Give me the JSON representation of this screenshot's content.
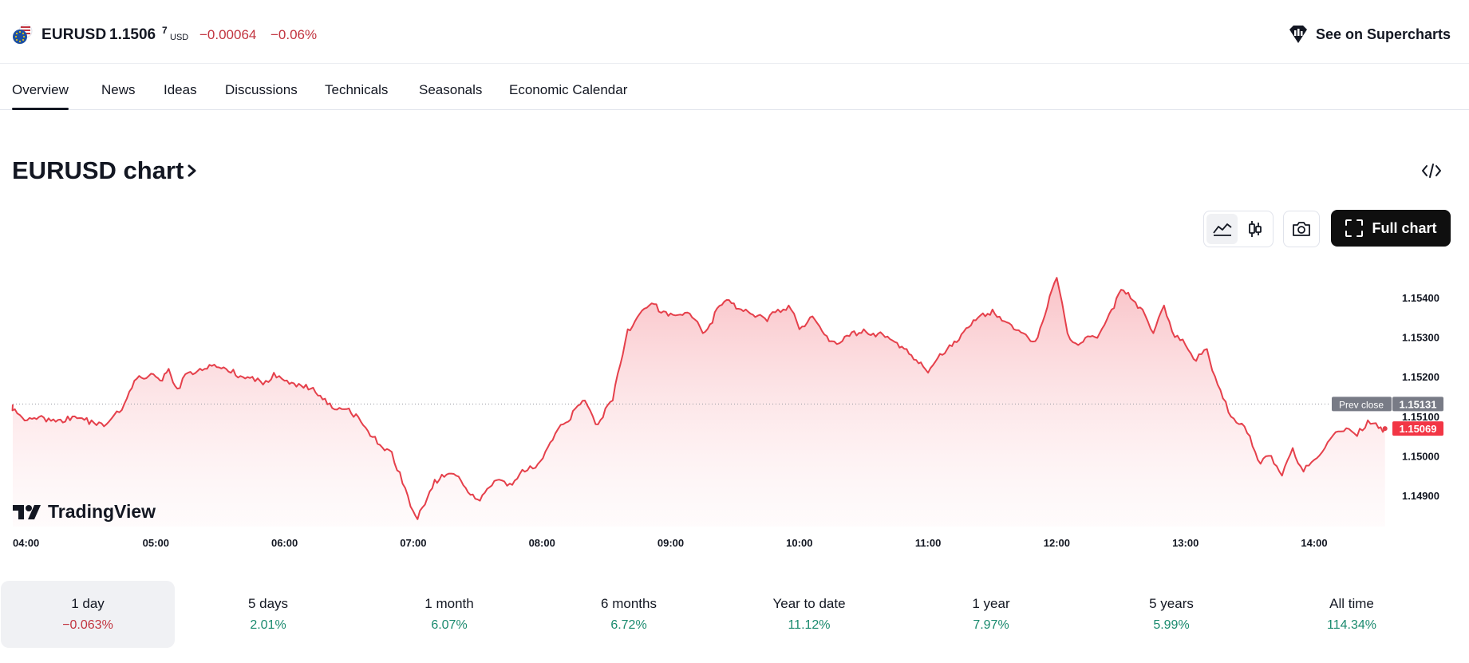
{
  "header": {
    "symbol": "EURUSD",
    "price": "1.1506",
    "price_sup": "7",
    "currency": "USD",
    "change": "−0.00064",
    "change_pct": "−0.06%",
    "supercharts_label": "See on Supercharts"
  },
  "tabs": [
    {
      "label": "Overview",
      "active": true
    },
    {
      "label": "News"
    },
    {
      "label": "Ideas"
    },
    {
      "label": "Discussions"
    },
    {
      "label": "Technicals"
    },
    {
      "label": "Seasonals"
    },
    {
      "label": "Economic Calendar"
    }
  ],
  "title": "EURUSD chart",
  "toolbar": {
    "full_chart_label": "Full chart",
    "icons": [
      "area-chart-icon",
      "candles-icon",
      "camera-icon",
      "fullscreen-icon"
    ]
  },
  "colors": {
    "line": "#e5404b",
    "negative": "#c2343f",
    "positive": "#1a8a6e",
    "prev_close_bg": "#787b86",
    "last_bg": "#f23645"
  },
  "logo": "TradingView",
  "chart_data": {
    "type": "area",
    "x_ticks": [
      "04:00",
      "05:00",
      "06:00",
      "07:00",
      "08:00",
      "09:00",
      "10:00",
      "11:00",
      "12:00",
      "13:00",
      "14:00"
    ],
    "y_ticks": [
      "1.15400",
      "1.15300",
      "1.15200",
      "1.15100",
      "1.15000",
      "1.14900"
    ],
    "ylim": [
      1.1482,
      1.1546
    ],
    "prev_close": {
      "label": "Prev close",
      "value": "1.15131"
    },
    "last": {
      "value": "1.15069"
    },
    "x_unit_start": "03:52",
    "series": [
      {
        "x": [
          "03:52",
          "04:00",
          "04:10",
          "04:20",
          "04:30",
          "04:37",
          "04:43",
          "04:50",
          "05:00",
          "05:03",
          "05:06",
          "05:10",
          "05:15",
          "05:25",
          "05:35",
          "05:45",
          "05:50",
          "05:55",
          "06:00",
          "06:10",
          "06:20",
          "06:30",
          "06:40",
          "06:50",
          "06:55",
          "07:00",
          "07:02",
          "07:10",
          "07:20",
          "07:30",
          "07:40",
          "07:45",
          "07:52",
          "07:57",
          "08:05",
          "08:10",
          "08:20",
          "08:25",
          "08:33",
          "08:40",
          "08:50",
          "09:00",
          "09:10",
          "09:15",
          "09:25",
          "09:35",
          "09:45",
          "09:50",
          "09:55",
          "10:00",
          "10:05",
          "10:15",
          "10:20",
          "10:30",
          "10:40",
          "10:50",
          "11:00",
          "11:10",
          "11:20",
          "11:30",
          "11:40",
          "11:50",
          "12:00",
          "12:05",
          "12:10",
          "12:20",
          "12:30",
          "12:40",
          "12:45",
          "12:50",
          "12:55",
          "13:00",
          "13:05",
          "13:10",
          "13:15",
          "13:20",
          "13:25",
          "13:30",
          "13:35",
          "13:40",
          "13:45",
          "13:50",
          "13:55",
          "14:00",
          "14:05",
          "14:10",
          "14:15",
          "14:20",
          "14:25",
          "14:30",
          "14:33"
        ],
        "y": [
          1.1513,
          1.1509,
          1.15095,
          1.1509,
          1.1509,
          1.1508,
          1.1511,
          1.1519,
          1.152,
          1.1519,
          1.1522,
          1.1517,
          1.1521,
          1.1523,
          1.1521,
          1.152,
          1.1518,
          1.1521,
          1.1519,
          1.1518,
          1.1513,
          1.1512,
          1.1505,
          1.1501,
          1.1493,
          1.1486,
          1.1484,
          1.1494,
          1.1495,
          1.1489,
          1.1494,
          1.1493,
          1.1496,
          1.1497,
          1.1504,
          1.1508,
          1.1514,
          1.1508,
          1.1514,
          1.1532,
          1.1538,
          1.1536,
          1.1535,
          1.1531,
          1.1539,
          1.1537,
          1.1534,
          1.1537,
          1.1538,
          1.1532,
          1.1535,
          1.1529,
          1.1529,
          1.1532,
          1.153,
          1.1527,
          1.1521,
          1.1528,
          1.1533,
          1.1537,
          1.1532,
          1.1529,
          1.1545,
          1.1531,
          1.1528,
          1.1531,
          1.1542,
          1.1537,
          1.1531,
          1.1538,
          1.153,
          1.1528,
          1.1524,
          1.1527,
          1.1518,
          1.1511,
          1.1508,
          1.1505,
          1.1498,
          1.15,
          1.1495,
          1.1502,
          1.1496,
          1.1499,
          1.1502,
          1.1506,
          1.1507,
          1.1505,
          1.1509,
          1.1507,
          1.15069
        ]
      }
    ],
    "grid": false,
    "legend": "none"
  },
  "periods": [
    {
      "label": "1 day",
      "value": "−0.063%",
      "sign": "neg",
      "active": true
    },
    {
      "label": "5 days",
      "value": "2.01%",
      "sign": "pos"
    },
    {
      "label": "1 month",
      "value": "6.07%",
      "sign": "pos"
    },
    {
      "label": "6 months",
      "value": "6.72%",
      "sign": "pos"
    },
    {
      "label": "Year to date",
      "value": "11.12%",
      "sign": "pos"
    },
    {
      "label": "1 year",
      "value": "7.97%",
      "sign": "pos"
    },
    {
      "label": "5 years",
      "value": "5.99%",
      "sign": "pos"
    },
    {
      "label": "All time",
      "value": "114.34%",
      "sign": "pos"
    }
  ]
}
